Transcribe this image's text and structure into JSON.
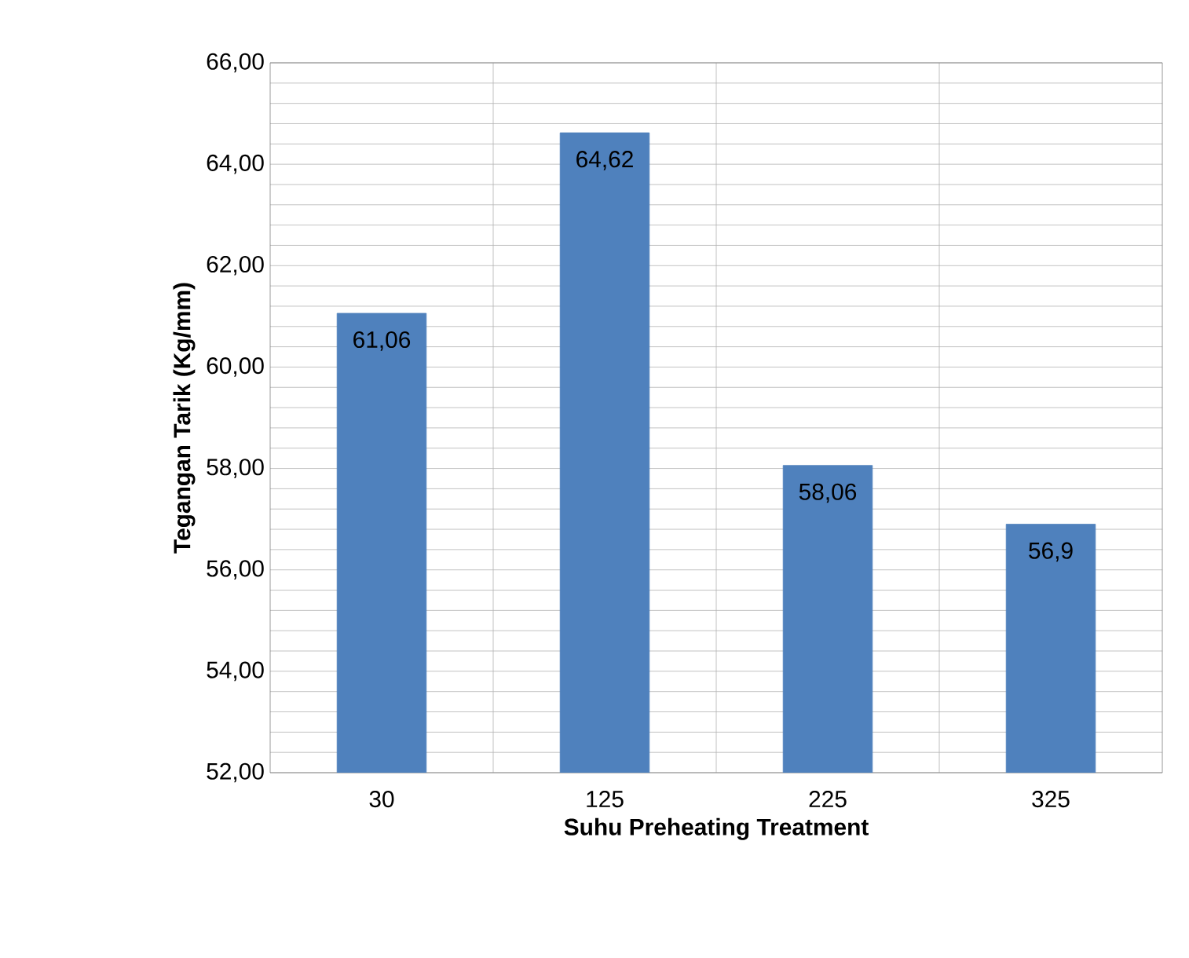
{
  "chart_data": {
    "type": "bar",
    "xlabel": "Suhu Preheating Treatment",
    "ylabel": "Tegangan Tarik (Kg/mm)",
    "categories": [
      "30",
      "125",
      "225",
      "325"
    ],
    "values": [
      61.06,
      64.62,
      58.06,
      56.9
    ],
    "color": "#4f81bd",
    "value_labels": [
      "61,06",
      "64,62",
      "58,06",
      "56,9"
    ],
    "ylim": [
      52,
      66
    ],
    "yticks": [
      {
        "value": 52,
        "label": "52,00"
      },
      {
        "value": 54,
        "label": "54,00"
      },
      {
        "value": 56,
        "label": "56,00"
      },
      {
        "value": 58,
        "label": "58,00"
      },
      {
        "value": 60,
        "label": "60,00"
      },
      {
        "value": 62,
        "label": "62,00"
      },
      {
        "value": 64,
        "label": "64,00"
      },
      {
        "value": 66,
        "label": "66,00"
      }
    ],
    "grid": true
  }
}
